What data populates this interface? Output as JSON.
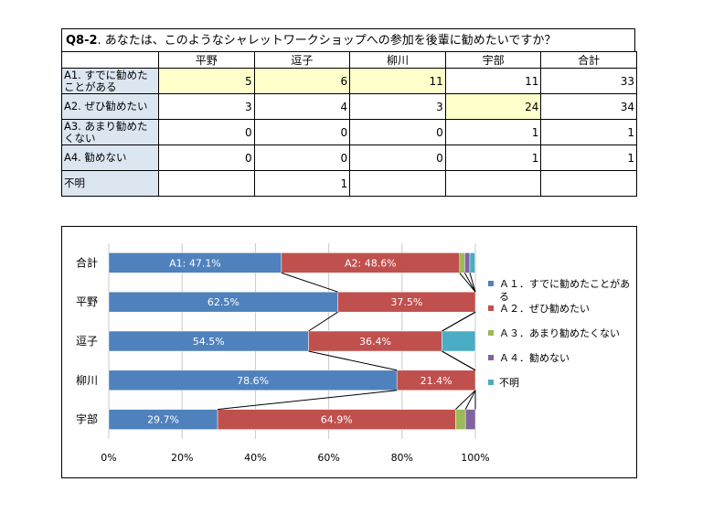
{
  "question": {
    "id": "Q8-2",
    "text": ".  あなたは、このようなシャレットワークショップへの参加を後輩に勧めたいですか？"
  },
  "table": {
    "columns": [
      "平野",
      "逗子",
      "柳川",
      "宇部",
      "合計"
    ],
    "rows": [
      {
        "label": "A1. すでに勧めたことがある",
        "values": [
          "5",
          "6",
          "11",
          "11",
          "33"
        ],
        "highlight": [
          true,
          true,
          true,
          false,
          false
        ]
      },
      {
        "label": "A2. ぜひ勧めたい",
        "values": [
          "3",
          "4",
          "3",
          "24",
          "34"
        ],
        "highlight": [
          false,
          false,
          false,
          true,
          false
        ]
      },
      {
        "label": "A3. あまり勧めたくない",
        "values": [
          "0",
          "0",
          "0",
          "1",
          "1"
        ],
        "highlight": [
          false,
          false,
          false,
          false,
          false
        ]
      },
      {
        "label": "A4. 勧めない",
        "values": [
          "0",
          "0",
          "0",
          "1",
          "1"
        ],
        "highlight": [
          false,
          false,
          false,
          false,
          false
        ]
      },
      {
        "label": "不明",
        "values": [
          "",
          "1",
          "",
          "",
          ""
        ],
        "highlight": [
          false,
          false,
          false,
          false,
          false
        ]
      }
    ]
  },
  "chart_data": {
    "type": "bar",
    "orientation": "horizontal",
    "stacked": "percent",
    "categories": [
      "合計",
      "平野",
      "逗子",
      "柳川",
      "宇部"
    ],
    "series": [
      {
        "name": "Ａ１．すでに勧めたことがある",
        "color": "#4f81bd",
        "values": [
          47.1,
          62.5,
          54.5,
          78.6,
          29.7
        ],
        "labels": [
          "A1: 47.1%",
          "62.5%",
          "54.5%",
          "78.6%",
          "29.7%"
        ]
      },
      {
        "name": "Ａ２．ぜひ勧めたい",
        "color": "#c0504d",
        "values": [
          48.6,
          37.5,
          36.4,
          21.4,
          64.9
        ],
        "labels": [
          "A2: 48.6%",
          "37.5%",
          "36.4%",
          "21.4%",
          "64.9%"
        ]
      },
      {
        "name": "Ａ３．あまり勧めたくない",
        "color": "#9bbb59",
        "values": [
          1.4,
          0,
          0,
          0,
          2.7
        ],
        "labels": [
          "",
          "",
          "",
          "",
          ""
        ]
      },
      {
        "name": "Ａ４．勧めない",
        "color": "#8064a2",
        "values": [
          1.4,
          0,
          0,
          0,
          2.7
        ],
        "labels": [
          "",
          "",
          "",
          "",
          ""
        ]
      },
      {
        "name": "不明",
        "color": "#4bacc6",
        "values": [
          1.4,
          0,
          9.1,
          0,
          0
        ],
        "labels": [
          "",
          "",
          "",
          "",
          ""
        ]
      }
    ],
    "x_ticks": [
      "0%",
      "20%",
      "40%",
      "60%",
      "80%",
      "100%"
    ],
    "xlim": [
      0,
      100
    ],
    "grid": true,
    "series_lines": true,
    "legend_position": "right"
  }
}
